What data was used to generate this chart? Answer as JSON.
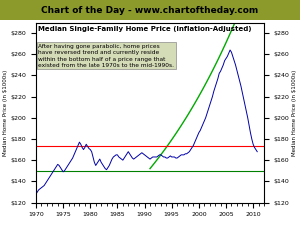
{
  "title_banner": "Chart of the Day - www.chartoftheday.com",
  "subtitle": "Median Single-Family Home Price (Inflation-Adjusted)",
  "annotation": "After having gone parabolic, home prices\nhave reversed trend and currently reside\nwithin the bottom half of a price range that\nexisted from the late 1970s to the mid-1990s.",
  "ylabel_left": "Median Home Price (in $1000s)",
  "ylabel_right": "Median Home Price (in $1000s)",
  "xlim": [
    1970,
    2012
  ],
  "ylim": [
    120,
    290
  ],
  "yticks": [
    120,
    140,
    160,
    180,
    200,
    220,
    240,
    260,
    280
  ],
  "xticks": [
    1970,
    1975,
    1980,
    1985,
    1990,
    1995,
    2000,
    2005,
    2010
  ],
  "red_hline": 173,
  "green_hline": 150,
  "banner_color": "#8B9A2A",
  "line_color": "#0000AA",
  "curve_color": "#00AA00",
  "annotation_box_color": "#D0D8B0",
  "years": [
    1970.0,
    1970.25,
    1970.5,
    1970.75,
    1971.0,
    1971.25,
    1971.5,
    1971.75,
    1972.0,
    1972.25,
    1972.5,
    1972.75,
    1973.0,
    1973.25,
    1973.5,
    1973.75,
    1974.0,
    1974.25,
    1974.5,
    1974.75,
    1975.0,
    1975.25,
    1975.5,
    1975.75,
    1976.0,
    1976.25,
    1976.5,
    1976.75,
    1977.0,
    1977.25,
    1977.5,
    1977.75,
    1978.0,
    1978.25,
    1978.5,
    1978.75,
    1979.0,
    1979.25,
    1979.5,
    1979.75,
    1980.0,
    1980.25,
    1980.5,
    1980.75,
    1981.0,
    1981.25,
    1981.5,
    1981.75,
    1982.0,
    1982.25,
    1982.5,
    1982.75,
    1983.0,
    1983.25,
    1983.5,
    1983.75,
    1984.0,
    1984.25,
    1984.5,
    1984.75,
    1985.0,
    1985.25,
    1985.5,
    1985.75,
    1986.0,
    1986.25,
    1986.5,
    1986.75,
    1987.0,
    1987.25,
    1987.5,
    1987.75,
    1988.0,
    1988.25,
    1988.5,
    1988.75,
    1989.0,
    1989.25,
    1989.5,
    1989.75,
    1990.0,
    1990.25,
    1990.5,
    1990.75,
    1991.0,
    1991.25,
    1991.5,
    1991.75,
    1992.0,
    1992.25,
    1992.5,
    1992.75,
    1993.0,
    1993.25,
    1993.5,
    1993.75,
    1994.0,
    1994.25,
    1994.5,
    1994.75,
    1995.0,
    1995.25,
    1995.5,
    1995.75,
    1996.0,
    1996.25,
    1996.5,
    1996.75,
    1997.0,
    1997.25,
    1997.5,
    1997.75,
    1998.0,
    1998.25,
    1998.5,
    1998.75,
    1999.0,
    1999.25,
    1999.5,
    1999.75,
    2000.0,
    2000.25,
    2000.5,
    2000.75,
    2001.0,
    2001.25,
    2001.5,
    2001.75,
    2002.0,
    2002.25,
    2002.5,
    2002.75,
    2003.0,
    2003.25,
    2003.5,
    2003.75,
    2004.0,
    2004.25,
    2004.5,
    2004.75,
    2005.0,
    2005.25,
    2005.5,
    2005.75,
    2006.0,
    2006.25,
    2006.5,
    2006.75,
    2007.0,
    2007.25,
    2007.5,
    2007.75,
    2008.0,
    2008.25,
    2008.5,
    2008.75,
    2009.0,
    2009.25,
    2009.5,
    2009.75,
    2010.0,
    2010.25,
    2010.5,
    2010.75
  ],
  "prices": [
    128,
    130,
    132,
    133,
    134,
    135,
    136,
    138,
    140,
    142,
    144,
    146,
    148,
    150,
    152,
    154,
    156,
    155,
    153,
    151,
    149,
    150,
    152,
    154,
    156,
    158,
    160,
    162,
    165,
    168,
    171,
    174,
    177,
    175,
    172,
    170,
    172,
    175,
    173,
    171,
    170,
    168,
    163,
    158,
    155,
    157,
    159,
    161,
    158,
    156,
    154,
    152,
    151,
    153,
    155,
    158,
    161,
    163,
    164,
    165,
    165,
    163,
    162,
    161,
    160,
    162,
    164,
    166,
    168,
    166,
    164,
    162,
    161,
    162,
    163,
    164,
    165,
    166,
    167,
    166,
    165,
    164,
    163,
    162,
    161,
    162,
    163,
    163,
    163,
    163,
    164,
    165,
    165,
    164,
    163,
    163,
    162,
    162,
    163,
    164,
    163,
    163,
    163,
    162,
    162,
    163,
    164,
    165,
    165,
    165,
    166,
    166,
    167,
    168,
    170,
    172,
    174,
    177,
    180,
    183,
    186,
    188,
    191,
    194,
    197,
    200,
    204,
    208,
    212,
    216,
    220,
    225,
    229,
    233,
    237,
    242,
    244,
    247,
    250,
    254,
    256,
    258,
    261,
    264,
    262,
    258,
    254,
    250,
    245,
    240,
    235,
    230,
    224,
    218,
    212,
    206,
    200,
    193,
    186,
    180,
    175,
    172,
    170,
    168
  ]
}
